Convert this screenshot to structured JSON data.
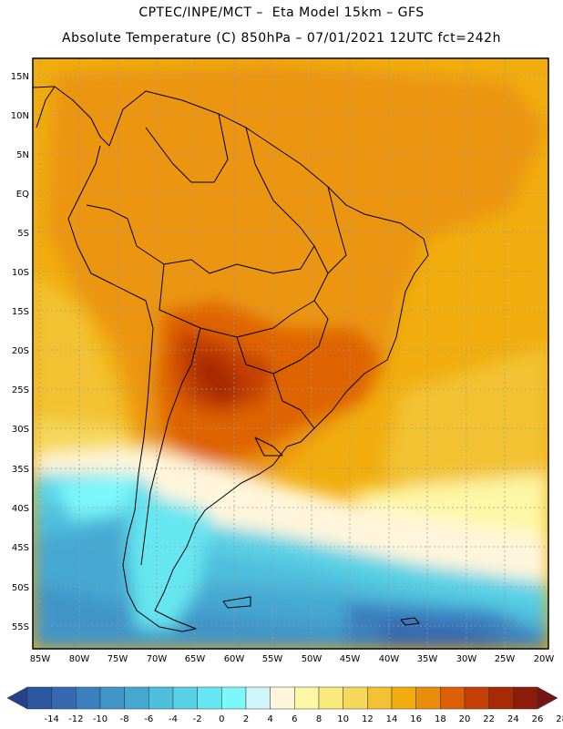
{
  "header": {
    "line1": "CPTEC/INPE/MCT –  Eta Model 15km – GFS",
    "line2": "Absolute Temperature (C) 850hPa – 07/01/2021 12UTC fct=242h"
  },
  "axes": {
    "lat_labels": [
      "15N",
      "10N",
      "5N",
      "EQ",
      "5S",
      "10S",
      "15S",
      "20S",
      "25S",
      "30S",
      "35S",
      "40S",
      "45S",
      "50S",
      "55S"
    ],
    "lon_labels": [
      "85W",
      "80W",
      "75W",
      "70W",
      "65W",
      "60W",
      "55W",
      "50W",
      "45W",
      "40W",
      "35W",
      "30W",
      "25W",
      "20W"
    ]
  },
  "colorbar": {
    "labels": [
      "-14",
      "-12",
      "-10",
      "-8",
      "-6",
      "-4",
      "-2",
      "0",
      "2",
      "4",
      "6",
      "8",
      "10",
      "12",
      "14",
      "16",
      "18",
      "20",
      "22",
      "24",
      "26",
      "28"
    ],
    "colors": [
      "#24428c",
      "#2d56a0",
      "#3568b0",
      "#3b7fbf",
      "#3f94c8",
      "#45a8d2",
      "#4dbedc",
      "#5ad2e6",
      "#66e6f0",
      "#7cf8fb",
      "#cff7fb",
      "#fff6dc",
      "#fdf7a6",
      "#f9ea7c",
      "#f6d85a",
      "#f2c233",
      "#f1ad0e",
      "#e98d0a",
      "#de5e06",
      "#c53f06",
      "#a82a05",
      "#8c1c08",
      "#741417"
    ]
  }
}
